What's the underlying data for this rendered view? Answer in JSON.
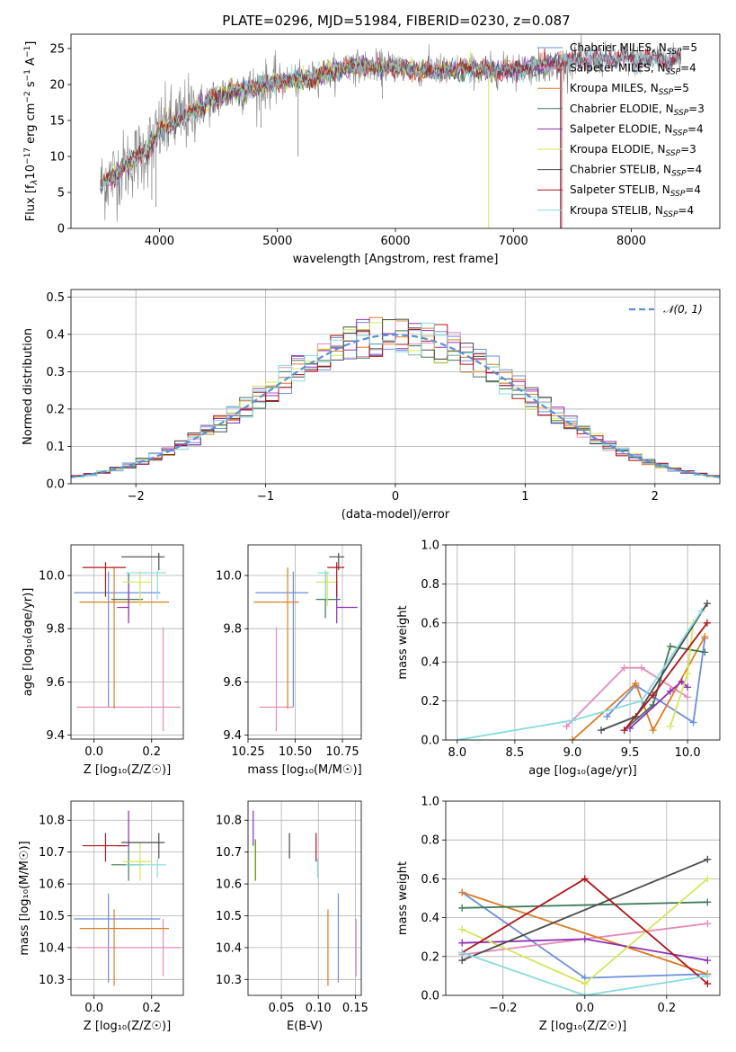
{
  "title": "PLATE=0296, MJD=51984, FIBERID=0230, z=0.087",
  "colors": {
    "Chabrier MILES": "#6a8fdf",
    "Salpeter MILES": "#e58aba",
    "Kroupa MILES": "#e07b22",
    "Chabrier ELODIE": "#3d7a55",
    "Salpeter ELODIE": "#8e2eb6",
    "Kroupa ELODIE": "#d4e65a",
    "Chabrier STELIB": "#4a4a4a",
    "Salpeter STELIB": "#b0141a",
    "Kroupa STELIB": "#86dbe0",
    "data": "#7f7f7f",
    "normal": "#5b8fd6"
  },
  "chart_data": [
    {
      "type": "line",
      "panel": "spectrum",
      "xlabel": "wavelength [Angstrom, rest frame]",
      "ylabel": "Flux [f_λ 10^-17 erg cm^-2 s^-1 A^-1]",
      "ylabel_parts": {
        "a": "Flux [f",
        "b": "λ",
        "c": "10",
        "d": "−17",
        "e": " erg cm",
        "f": "−2",
        "g": " s",
        "h": "−1",
        "i": " A",
        "j": "−1",
        "k": "]"
      },
      "xlim": [
        3250,
        8750
      ],
      "ylim": [
        0,
        27
      ],
      "xticks": [
        4000,
        5000,
        6000,
        7000,
        8000
      ],
      "yticks": [
        0,
        5,
        10,
        15,
        20,
        25
      ],
      "legend": [
        {
          "name": "Chabrier MILES",
          "nssp": "5"
        },
        {
          "name": "Salpeter MILES",
          "nssp": "4"
        },
        {
          "name": "Kroupa MILES",
          "nssp": "5"
        },
        {
          "name": "Chabrier ELODIE",
          "nssp": "3"
        },
        {
          "name": "Salpeter ELODIE",
          "nssp": "4"
        },
        {
          "name": "Kroupa ELODIE",
          "nssp": "3"
        },
        {
          "name": "Chabrier STELIB",
          "nssp": "4"
        },
        {
          "name": "Salpeter STELIB",
          "nssp": "4"
        },
        {
          "name": "Kroupa STELIB",
          "nssp": "4"
        }
      ],
      "legend_placement": "upper right",
      "continuum": {
        "x": [
          3500,
          3700,
          3900,
          4000,
          4200,
          4400,
          4600,
          4800,
          5000,
          5200,
          5400,
          5600,
          5800,
          6000,
          6200,
          6400,
          6600,
          6800,
          7000,
          7200,
          7400,
          7600,
          7800,
          8000,
          8200,
          8400
        ],
        "y": [
          6,
          8.5,
          11,
          13.5,
          15.5,
          17.5,
          19,
          19.5,
          20.5,
          20.5,
          21.5,
          22.5,
          22.5,
          22.5,
          22,
          22,
          22,
          22,
          22,
          22.5,
          23,
          23.5,
          23.5,
          23.5,
          23.5,
          23.5
        ]
      },
      "grid": false
    },
    {
      "type": "bar",
      "panel": "residuals",
      "xlabel": "(data-model)/error",
      "ylabel": "Normed distribution",
      "xlim": [
        -2.5,
        2.5
      ],
      "ylim": [
        0,
        0.52
      ],
      "xticks": [
        -2,
        -1,
        0,
        1,
        2
      ],
      "yticks": [
        0.0,
        0.1,
        0.2,
        0.3,
        0.4,
        0.5
      ],
      "legend": [
        "𝒩(0, 1)"
      ],
      "legend_placement": "upper right",
      "bin_width": 0.1,
      "grid": true
    },
    {
      "type": "scatter",
      "panel": "age-vs-Z",
      "xlabel": "Z [log₁₀(Z/Z☉)]",
      "ylabel": "age  [log₁₀(age/yr)]",
      "xlim": [
        -0.08,
        0.31
      ],
      "ylim": [
        9.385,
        10.115
      ],
      "xticks": [
        0.0,
        0.2
      ],
      "yticks": [
        9.4,
        9.6,
        9.8,
        10.0
      ],
      "points": [
        {
          "model": "Chabrier MILES",
          "x": 0.05,
          "y": 9.935,
          "xerr": [
            0.12,
            0.18
          ],
          "yerr": [
            0.43,
            0.08
          ]
        },
        {
          "model": "Salpeter MILES",
          "x": 0.24,
          "y": 9.505,
          "xerr": [
            0.3,
            0.06
          ],
          "yerr": [
            0.09,
            0.3
          ]
        },
        {
          "model": "Kroupa MILES",
          "x": 0.07,
          "y": 9.9,
          "xerr": [
            0.12,
            0.19
          ],
          "yerr": [
            0.4,
            0.13
          ]
        },
        {
          "model": "Chabrier ELODIE",
          "x": 0.12,
          "y": 9.91,
          "xerr": [
            0.06,
            0.05
          ],
          "yerr": [
            0.07,
            0.1
          ]
        },
        {
          "model": "Salpeter ELODIE",
          "x": 0.12,
          "y": 9.88,
          "xerr": [
            0.04,
            0.0
          ],
          "yerr": [
            0.06,
            0.09
          ]
        },
        {
          "model": "Kroupa ELODIE",
          "x": 0.16,
          "y": 9.975,
          "xerr": [
            0.06,
            0.04
          ],
          "yerr": [
            0.09,
            0.04
          ]
        },
        {
          "model": "Chabrier STELIB",
          "x": 0.225,
          "y": 10.07,
          "xerr": [
            0.13,
            0.02
          ],
          "yerr": [
            0.05,
            0.015
          ]
        },
        {
          "model": "Salpeter STELIB",
          "x": 0.04,
          "y": 10.03,
          "xerr": [
            0.08,
            0.07
          ],
          "yerr": [
            0.11,
            0.02
          ]
        },
        {
          "model": "Kroupa STELIB",
          "x": 0.22,
          "y": 10.01,
          "xerr": [
            0.11,
            0.03
          ],
          "yerr": [
            0.1,
            0.01
          ]
        }
      ],
      "grid": true
    },
    {
      "type": "scatter",
      "panel": "age-vs-mass",
      "xlabel": "mass [log₁₀(M/M☉)]",
      "ylabel": "",
      "xlim": [
        10.25,
        10.85
      ],
      "ylim": [
        9.385,
        10.115
      ],
      "xticks": [
        10.25,
        10.5,
        10.75
      ],
      "yticks": [
        9.4,
        9.6,
        9.8,
        10.0
      ],
      "points": [
        {
          "model": "Chabrier MILES",
          "x": 10.49,
          "y": 9.935,
          "xerr": [
            0.2,
            0.08
          ],
          "yerr": [
            0.43,
            0.08
          ]
        },
        {
          "model": "Salpeter MILES",
          "x": 10.4,
          "y": 9.505,
          "xerr": [
            0.09,
            0.09
          ],
          "yerr": [
            0.09,
            0.3
          ]
        },
        {
          "model": "Kroupa MILES",
          "x": 10.46,
          "y": 9.9,
          "xerr": [
            0.18,
            0.06
          ],
          "yerr": [
            0.4,
            0.13
          ]
        },
        {
          "model": "Chabrier ELODIE",
          "x": 10.66,
          "y": 9.91,
          "xerr": [
            0.05,
            0.08
          ],
          "yerr": [
            0.07,
            0.1
          ]
        },
        {
          "model": "Salpeter ELODIE",
          "x": 10.72,
          "y": 9.88,
          "xerr": [
            0.0,
            0.11
          ],
          "yerr": [
            0.06,
            0.09
          ]
        },
        {
          "model": "Kroupa ELODIE",
          "x": 10.67,
          "y": 9.975,
          "xerr": [
            0.06,
            0.06
          ],
          "yerr": [
            0.09,
            0.04
          ]
        },
        {
          "model": "Chabrier STELIB",
          "x": 10.73,
          "y": 10.07,
          "xerr": [
            0.05,
            0.03
          ],
          "yerr": [
            0.05,
            0.015
          ]
        },
        {
          "model": "Salpeter STELIB",
          "x": 10.72,
          "y": 10.03,
          "xerr": [
            0.05,
            0.04
          ],
          "yerr": [
            0.11,
            0.02
          ]
        },
        {
          "model": "Kroupa STELIB",
          "x": 10.66,
          "y": 10.01,
          "xerr": [
            0.04,
            0.02
          ],
          "yerr": [
            0.1,
            0.01
          ]
        }
      ],
      "grid": true
    },
    {
      "type": "line",
      "panel": "mass-weight-vs-age",
      "xlabel": "age  [log₁₀(age/yr)]",
      "ylabel": "mass weight",
      "xlim": [
        7.9,
        10.28
      ],
      "ylim": [
        0,
        1.0
      ],
      "xticks": [
        8.0,
        8.5,
        9.0,
        9.5,
        10.0
      ],
      "yticks": [
        0.0,
        0.2,
        0.4,
        0.6,
        0.8,
        1.0
      ],
      "series": [
        {
          "model": "Chabrier MILES",
          "x": [
            9.3,
            9.55,
            10.05,
            10.15
          ],
          "y": [
            0.12,
            0.28,
            0.09,
            0.52
          ]
        },
        {
          "model": "Salpeter MILES",
          "x": [
            8.95,
            9.45,
            9.6,
            10.0
          ],
          "y": [
            0.07,
            0.37,
            0.37,
            0.22
          ]
        },
        {
          "model": "Kroupa MILES",
          "x": [
            9.0,
            9.55,
            9.7,
            10.15
          ],
          "y": [
            0.0,
            0.29,
            0.05,
            0.53
          ]
        },
        {
          "model": "Chabrier ELODIE",
          "x": [
            9.45,
            9.7,
            9.85,
            10.15
          ],
          "y": [
            0.05,
            0.18,
            0.48,
            0.45
          ]
        },
        {
          "model": "Salpeter ELODIE",
          "x": [
            9.5,
            9.85,
            9.95,
            10.0
          ],
          "y": [
            0.06,
            0.25,
            0.3,
            0.27
          ]
        },
        {
          "model": "Kroupa ELODIE",
          "x": [
            9.85,
            10.0,
            10.05
          ],
          "y": [
            0.07,
            0.34,
            0.6
          ]
        },
        {
          "model": "Chabrier STELIB",
          "x": [
            9.25,
            9.55,
            10.17
          ],
          "y": [
            0.05,
            0.12,
            0.7
          ]
        },
        {
          "model": "Salpeter STELIB",
          "x": [
            9.45,
            9.7,
            10.17
          ],
          "y": [
            0.05,
            0.23,
            0.6
          ]
        },
        {
          "model": "Kroupa STELIB",
          "x": [
            8.0,
            9.0,
            9.6,
            10.12
          ],
          "y": [
            0.0,
            0.1,
            0.2,
            0.66
          ]
        }
      ],
      "grid": true
    },
    {
      "type": "scatter",
      "panel": "mass-vs-Z",
      "xlabel": "Z [log₁₀(Z/Z☉)]",
      "ylabel": "mass [log₁₀(M/M☉)]",
      "xlim": [
        -0.08,
        0.31
      ],
      "ylim": [
        10.25,
        10.86
      ],
      "xticks": [
        0.0,
        0.2
      ],
      "yticks": [
        10.3,
        10.4,
        10.5,
        10.6,
        10.7,
        10.8
      ],
      "points": [
        {
          "model": "Chabrier MILES",
          "x": 0.05,
          "y": 10.49,
          "xerr": [
            0.12,
            0.18
          ],
          "yerr": [
            0.2,
            0.08
          ]
        },
        {
          "model": "Salpeter MILES",
          "x": 0.24,
          "y": 10.4,
          "xerr": [
            0.3,
            0.06
          ],
          "yerr": [
            0.09,
            0.09
          ]
        },
        {
          "model": "Kroupa MILES",
          "x": 0.07,
          "y": 10.46,
          "xerr": [
            0.12,
            0.19
          ],
          "yerr": [
            0.18,
            0.06
          ]
        },
        {
          "model": "Chabrier ELODIE",
          "x": 0.12,
          "y": 10.66,
          "xerr": [
            0.06,
            0.05
          ],
          "yerr": [
            0.05,
            0.08
          ]
        },
        {
          "model": "Salpeter ELODIE",
          "x": 0.12,
          "y": 10.72,
          "xerr": [
            0.04,
            0.0
          ],
          "yerr": [
            0.0,
            0.11
          ]
        },
        {
          "model": "Kroupa ELODIE",
          "x": 0.16,
          "y": 10.67,
          "xerr": [
            0.06,
            0.04
          ],
          "yerr": [
            0.06,
            0.06
          ]
        },
        {
          "model": "Chabrier STELIB",
          "x": 0.225,
          "y": 10.73,
          "xerr": [
            0.13,
            0.02
          ],
          "yerr": [
            0.05,
            0.03
          ]
        },
        {
          "model": "Salpeter STELIB",
          "x": 0.04,
          "y": 10.72,
          "xerr": [
            0.08,
            0.07
          ],
          "yerr": [
            0.05,
            0.04
          ]
        },
        {
          "model": "Kroupa STELIB",
          "x": 0.22,
          "y": 10.66,
          "xerr": [
            0.11,
            0.03
          ],
          "yerr": [
            0.04,
            0.02
          ]
        }
      ],
      "grid": true
    },
    {
      "type": "scatter",
      "panel": "mass-vs-EBV",
      "xlabel": "E(B-V)",
      "ylabel": "",
      "xlim": [
        0.005,
        0.158
      ],
      "ylim": [
        10.25,
        10.86
      ],
      "xticks": [
        0.05,
        0.1,
        0.15
      ],
      "yticks": [
        10.3,
        10.4,
        10.5,
        10.6,
        10.7,
        10.8
      ],
      "points": [
        {
          "model": "Chabrier MILES",
          "x": 0.127,
          "y": 10.49,
          "yerr": [
            0.2,
            0.08
          ]
        },
        {
          "model": "Salpeter MILES",
          "x": 0.151,
          "y": 10.4,
          "yerr": [
            0.09,
            0.09
          ]
        },
        {
          "model": "Kroupa MILES",
          "x": 0.113,
          "y": 10.46,
          "yerr": [
            0.18,
            0.06
          ]
        },
        {
          "model": "Chabrier ELODIE",
          "x": 0.015,
          "y": 10.66,
          "yerr": [
            0.05,
            0.08
          ]
        },
        {
          "model": "Salpeter ELODIE",
          "x": 0.012,
          "y": 10.72,
          "yerr": [
            0.0,
            0.11
          ]
        },
        {
          "model": "Kroupa ELODIE",
          "x": 0.014,
          "y": 10.67,
          "yerr": [
            0.06,
            0.06
          ]
        },
        {
          "model": "Chabrier STELIB",
          "x": 0.061,
          "y": 10.73,
          "yerr": [
            0.05,
            0.03
          ]
        },
        {
          "model": "Salpeter STELIB",
          "x": 0.097,
          "y": 10.72,
          "yerr": [
            0.05,
            0.04
          ]
        },
        {
          "model": "Kroupa STELIB",
          "x": 0.099,
          "y": 10.66,
          "yerr": [
            0.04,
            0.02
          ]
        }
      ],
      "grid": true
    },
    {
      "type": "line",
      "panel": "mass-weight-vs-Z",
      "xlabel": "Z [log₁₀(Z/Z☉)]",
      "ylabel": "mass weight",
      "xlim": [
        -0.34,
        0.33
      ],
      "ylim": [
        0,
        1.0
      ],
      "xticks": [
        -0.2,
        0.0,
        0.2
      ],
      "yticks": [
        0.0,
        0.2,
        0.4,
        0.6,
        0.8,
        1.0
      ],
      "series": [
        {
          "model": "Chabrier MILES",
          "x": [
            -0.3,
            0.0,
            0.3
          ],
          "y": [
            0.53,
            0.09,
            0.11
          ]
        },
        {
          "model": "Salpeter MILES",
          "x": [
            -0.3,
            0.3
          ],
          "y": [
            0.21,
            0.37
          ]
        },
        {
          "model": "Kroupa MILES",
          "x": [
            -0.3,
            0.3
          ],
          "y": [
            0.53,
            0.11
          ]
        },
        {
          "model": "Chabrier ELODIE",
          "x": [
            -0.3,
            0.3
          ],
          "y": [
            0.45,
            0.48
          ]
        },
        {
          "model": "Salpeter ELODIE",
          "x": [
            -0.3,
            0.0,
            0.3
          ],
          "y": [
            0.27,
            0.29,
            0.18
          ]
        },
        {
          "model": "Kroupa ELODIE",
          "x": [
            -0.3,
            0.0,
            0.3
          ],
          "y": [
            0.34,
            0.06,
            0.6
          ]
        },
        {
          "model": "Chabrier STELIB",
          "x": [
            -0.3,
            0.3
          ],
          "y": [
            0.18,
            0.7
          ]
        },
        {
          "model": "Salpeter STELIB",
          "x": [
            -0.3,
            0.0,
            0.3
          ],
          "y": [
            0.22,
            0.6,
            0.06
          ]
        },
        {
          "model": "Kroupa STELIB",
          "x": [
            -0.3,
            0.0,
            0.3
          ],
          "y": [
            0.22,
            0.0,
            0.1
          ]
        }
      ],
      "grid": true
    }
  ]
}
